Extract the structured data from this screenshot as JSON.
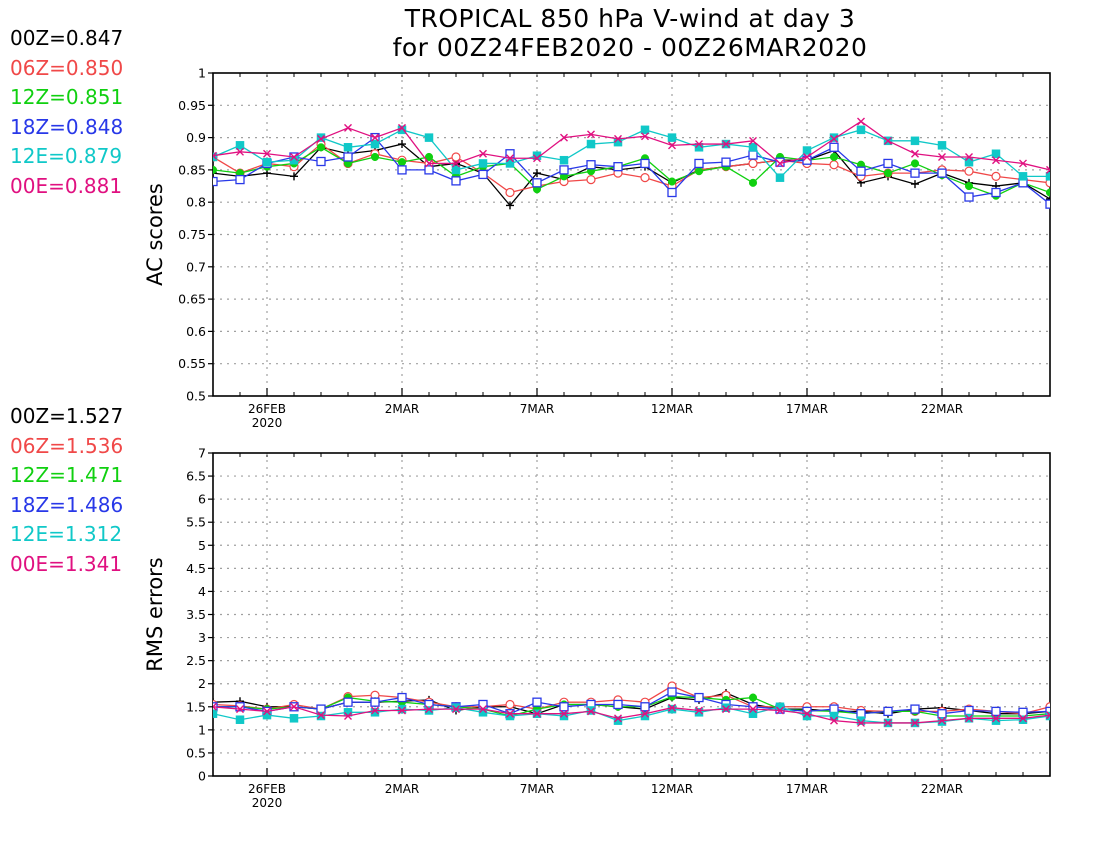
{
  "title": {
    "line1": "TROPICAL 850 hPa V-wind at day 3",
    "line2": "for 00Z24FEB2020 - 00Z26MAR2020"
  },
  "colors": {
    "00Z": "#000000",
    "06Z": "#f04848",
    "12Z": "#10d010",
    "18Z": "#2838e8",
    "12E": "#10c8c8",
    "00E": "#e01080",
    "grid": "#a0a0a0",
    "axis": "#000000"
  },
  "legend_top": [
    {
      "label": "00Z=0.847",
      "color": "#000000"
    },
    {
      "label": "06Z=0.850",
      "color": "#f04848"
    },
    {
      "label": "12Z=0.851",
      "color": "#10d010"
    },
    {
      "label": "18Z=0.848",
      "color": "#2838e8"
    },
    {
      "label": "12E=0.879",
      "color": "#10c8c8"
    },
    {
      "label": "00E=0.881",
      "color": "#e01080"
    }
  ],
  "legend_bottom": [
    {
      "label": "00Z=1.527",
      "color": "#000000"
    },
    {
      "label": "06Z=1.536",
      "color": "#f04848"
    },
    {
      "label": "12Z=1.471",
      "color": "#10d010"
    },
    {
      "label": "18Z=1.486",
      "color": "#2838e8"
    },
    {
      "label": "12E=1.312",
      "color": "#10c8c8"
    },
    {
      "label": "00E=1.341",
      "color": "#e01080"
    }
  ],
  "chart_data": [
    {
      "type": "line",
      "ylabel": "AC scores",
      "xlabel": "",
      "ylim": [
        0.5,
        1.0
      ],
      "yticks": [
        "0.5",
        "0.55",
        "0.6",
        "0.65",
        "0.7",
        "0.75",
        "0.8",
        "0.85",
        "0.9",
        "0.95",
        "1"
      ],
      "xrange_days": [
        24,
        55
      ],
      "xticks": [
        {
          "day": 26,
          "label": "26FEB",
          "sub": "2020"
        },
        {
          "day": 31,
          "label": "2MAR",
          "sub": ""
        },
        {
          "day": 36,
          "label": "7MAR",
          "sub": ""
        },
        {
          "day": 41,
          "label": "12MAR",
          "sub": ""
        },
        {
          "day": 46,
          "label": "17MAR",
          "sub": ""
        },
        {
          "day": 51,
          "label": "22MAR",
          "sub": ""
        }
      ],
      "grid": true,
      "x": [
        24,
        25,
        26,
        27,
        28,
        29,
        30,
        31,
        32,
        33,
        34,
        35,
        36,
        37,
        38,
        39,
        40,
        41,
        42,
        43,
        44,
        45,
        46,
        47,
        48,
        49,
        50,
        51,
        52,
        53,
        54,
        55
      ],
      "series": [
        {
          "name": "00Z",
          "marker": "plus",
          "values": [
            0.845,
            0.84,
            0.845,
            0.84,
            0.885,
            0.875,
            0.88,
            0.89,
            0.855,
            0.86,
            0.845,
            0.795,
            0.845,
            0.835,
            0.855,
            0.85,
            0.855,
            0.83,
            0.85,
            0.855,
            0.86,
            0.865,
            0.865,
            0.88,
            0.83,
            0.84,
            0.828,
            0.845,
            0.83,
            0.825,
            0.83,
            0.805
          ]
        },
        {
          "name": "06Z",
          "marker": "circle",
          "values": [
            0.87,
            0.845,
            0.86,
            0.855,
            0.89,
            0.86,
            0.875,
            0.865,
            0.86,
            0.87,
            0.845,
            0.815,
            0.825,
            0.832,
            0.835,
            0.845,
            0.838,
            0.825,
            0.85,
            0.855,
            0.86,
            0.865,
            0.86,
            0.858,
            0.84,
            0.845,
            0.845,
            0.85,
            0.848,
            0.84,
            0.835,
            0.83
          ]
        },
        {
          "name": "12Z",
          "marker": "dot",
          "values": [
            0.85,
            0.845,
            0.855,
            0.86,
            0.885,
            0.86,
            0.87,
            0.862,
            0.87,
            0.84,
            0.855,
            0.86,
            0.82,
            0.84,
            0.848,
            0.855,
            0.868,
            0.832,
            0.848,
            0.855,
            0.83,
            0.87,
            0.865,
            0.87,
            0.858,
            0.845,
            0.86,
            0.842,
            0.825,
            0.81,
            0.83,
            0.815
          ]
        },
        {
          "name": "18Z",
          "marker": "square",
          "values": [
            0.832,
            0.835,
            0.86,
            0.87,
            0.863,
            0.87,
            0.9,
            0.85,
            0.85,
            0.833,
            0.843,
            0.875,
            0.83,
            0.85,
            0.858,
            0.855,
            0.86,
            0.815,
            0.86,
            0.862,
            0.873,
            0.862,
            0.865,
            0.885,
            0.848,
            0.86,
            0.845,
            0.845,
            0.808,
            0.815,
            0.83,
            0.797
          ]
        },
        {
          "name": "12E",
          "marker": "filled-square",
          "values": [
            0.87,
            0.888,
            0.862,
            0.865,
            0.9,
            0.885,
            0.89,
            0.912,
            0.9,
            0.85,
            0.86,
            0.86,
            0.872,
            0.865,
            0.89,
            0.893,
            0.912,
            0.9,
            0.885,
            0.89,
            0.885,
            0.838,
            0.88,
            0.9,
            0.912,
            0.895,
            0.895,
            0.888,
            0.862,
            0.875,
            0.84,
            0.84
          ]
        },
        {
          "name": "00E",
          "marker": "x",
          "values": [
            0.872,
            0.878,
            0.875,
            0.87,
            0.898,
            0.915,
            0.9,
            0.915,
            0.86,
            0.86,
            0.875,
            0.868,
            0.868,
            0.9,
            0.905,
            0.898,
            0.902,
            0.888,
            0.89,
            0.89,
            0.895,
            0.86,
            0.87,
            0.898,
            0.925,
            0.895,
            0.875,
            0.87,
            0.87,
            0.865,
            0.86,
            0.85
          ]
        }
      ]
    },
    {
      "type": "line",
      "ylabel": "RMS errors",
      "xlabel": "",
      "ylim": [
        0,
        7
      ],
      "yticks": [
        "0",
        "0.5",
        "1",
        "1.5",
        "2",
        "2.5",
        "3",
        "3.5",
        "4",
        "4.5",
        "5",
        "5.5",
        "6",
        "6.5",
        "7"
      ],
      "xrange_days": [
        24,
        55
      ],
      "xticks": [
        {
          "day": 26,
          "label": "26FEB",
          "sub": "2020"
        },
        {
          "day": 31,
          "label": "2MAR",
          "sub": ""
        },
        {
          "day": 36,
          "label": "7MAR",
          "sub": ""
        },
        {
          "day": 41,
          "label": "12MAR",
          "sub": ""
        },
        {
          "day": 46,
          "label": "17MAR",
          "sub": ""
        },
        {
          "day": 51,
          "label": "22MAR",
          "sub": ""
        }
      ],
      "grid": true,
      "x": [
        24,
        25,
        26,
        27,
        28,
        29,
        30,
        31,
        32,
        33,
        34,
        35,
        36,
        37,
        38,
        39,
        40,
        41,
        42,
        43,
        44,
        45,
        46,
        47,
        48,
        49,
        50,
        51,
        52,
        53,
        54,
        55
      ],
      "series": [
        {
          "name": "00Z",
          "marker": "plus",
          "values": [
            1.6,
            1.62,
            1.5,
            1.5,
            1.45,
            1.6,
            1.6,
            1.62,
            1.65,
            1.42,
            1.5,
            1.5,
            1.35,
            1.55,
            1.55,
            1.5,
            1.45,
            1.7,
            1.65,
            1.8,
            1.55,
            1.45,
            1.45,
            1.4,
            1.4,
            1.35,
            1.45,
            1.48,
            1.42,
            1.35,
            1.35,
            1.4
          ]
        },
        {
          "name": "06Z",
          "marker": "circle",
          "values": [
            1.55,
            1.52,
            1.45,
            1.55,
            1.45,
            1.72,
            1.75,
            1.7,
            1.6,
            1.5,
            1.5,
            1.55,
            1.45,
            1.6,
            1.6,
            1.65,
            1.6,
            1.95,
            1.7,
            1.75,
            1.5,
            1.5,
            1.5,
            1.5,
            1.42,
            1.4,
            1.4,
            1.4,
            1.45,
            1.4,
            1.35,
            1.5
          ]
        },
        {
          "name": "12Z",
          "marker": "dot",
          "values": [
            1.5,
            1.5,
            1.45,
            1.5,
            1.45,
            1.7,
            1.62,
            1.6,
            1.55,
            1.5,
            1.45,
            1.3,
            1.45,
            1.55,
            1.55,
            1.5,
            1.5,
            1.72,
            1.7,
            1.65,
            1.7,
            1.45,
            1.42,
            1.4,
            1.35,
            1.4,
            1.4,
            1.3,
            1.3,
            1.3,
            1.3,
            1.35
          ]
        },
        {
          "name": "18Z",
          "marker": "square",
          "values": [
            1.5,
            1.5,
            1.4,
            1.5,
            1.45,
            1.6,
            1.6,
            1.7,
            1.55,
            1.5,
            1.55,
            1.35,
            1.6,
            1.5,
            1.55,
            1.55,
            1.5,
            1.82,
            1.7,
            1.55,
            1.5,
            1.45,
            1.4,
            1.45,
            1.35,
            1.4,
            1.45,
            1.35,
            1.42,
            1.4,
            1.38,
            1.4
          ]
        },
        {
          "name": "12E",
          "marker": "filled-square",
          "values": [
            1.35,
            1.22,
            1.32,
            1.25,
            1.3,
            1.38,
            1.38,
            1.45,
            1.42,
            1.48,
            1.38,
            1.3,
            1.35,
            1.3,
            1.42,
            1.2,
            1.3,
            1.45,
            1.38,
            1.48,
            1.35,
            1.5,
            1.3,
            1.3,
            1.2,
            1.15,
            1.15,
            1.18,
            1.25,
            1.2,
            1.22,
            1.3
          ]
        },
        {
          "name": "00E",
          "marker": "x",
          "values": [
            1.5,
            1.45,
            1.4,
            1.5,
            1.32,
            1.3,
            1.42,
            1.42,
            1.45,
            1.45,
            1.45,
            1.35,
            1.35,
            1.35,
            1.4,
            1.25,
            1.35,
            1.48,
            1.42,
            1.45,
            1.45,
            1.42,
            1.35,
            1.2,
            1.15,
            1.15,
            1.15,
            1.2,
            1.25,
            1.25,
            1.25,
            1.32
          ]
        }
      ]
    }
  ]
}
